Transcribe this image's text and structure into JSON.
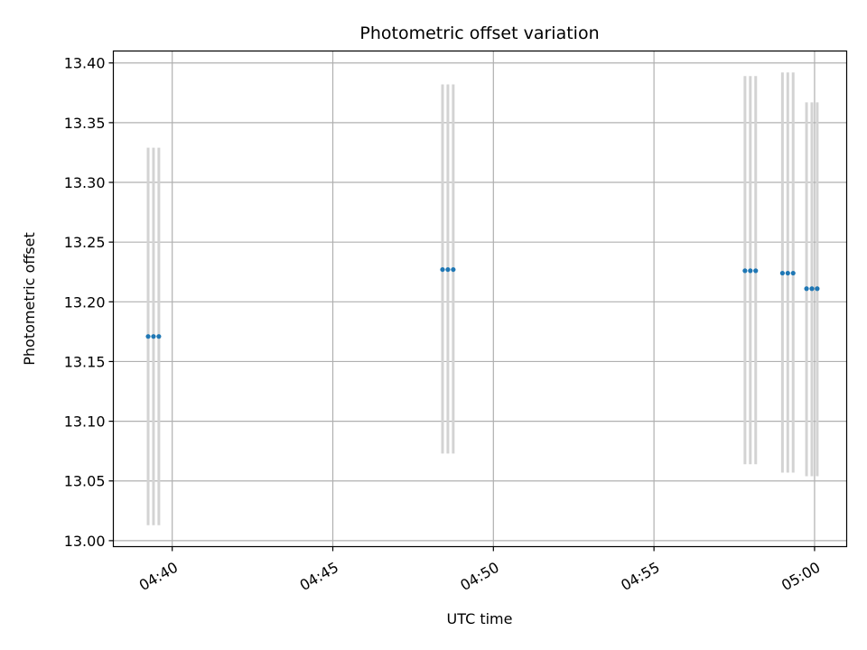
{
  "chart_data": {
    "type": "scatter",
    "title": "Photometric offset variation",
    "xlabel": "UTC time",
    "ylabel": "Photometric offset",
    "x_ticks": [
      "04:40",
      "04:45",
      "04:50",
      "04:55",
      "05:00"
    ],
    "x_tick_minutes": [
      280,
      285,
      290,
      295,
      300
    ],
    "y_ticks": [
      "13.00",
      "13.05",
      "13.10",
      "13.15",
      "13.20",
      "13.25",
      "13.30",
      "13.35",
      "13.40"
    ],
    "xlim": [
      "04:38:10",
      "05:01:00"
    ],
    "ylim": [
      12.995,
      13.41
    ],
    "grid": true,
    "point_color": "#1f77b4",
    "errorbar_color": "#d3d3d3",
    "series": [
      {
        "x": [
          "04:39:15",
          "04:39:25",
          "04:39:35",
          "04:48:25",
          "04:48:35",
          "04:48:45",
          "04:57:50",
          "04:58:00",
          "04:58:10",
          "04:59:00",
          "04:59:10",
          "04:59:20",
          "04:59:45",
          "04:59:55",
          "05:00:05"
        ],
        "y": [
          13.171,
          13.171,
          13.171,
          13.227,
          13.227,
          13.227,
          13.226,
          13.226,
          13.226,
          13.224,
          13.224,
          13.224,
          13.211,
          13.211,
          13.211
        ],
        "err_low": [
          13.013,
          13.013,
          13.013,
          13.073,
          13.073,
          13.073,
          13.064,
          13.064,
          13.064,
          13.057,
          13.057,
          13.057,
          13.054,
          13.054,
          13.054
        ],
        "err_high": [
          13.329,
          13.329,
          13.329,
          13.382,
          13.382,
          13.382,
          13.389,
          13.389,
          13.389,
          13.392,
          13.392,
          13.392,
          13.367,
          13.367,
          13.367
        ]
      }
    ]
  }
}
